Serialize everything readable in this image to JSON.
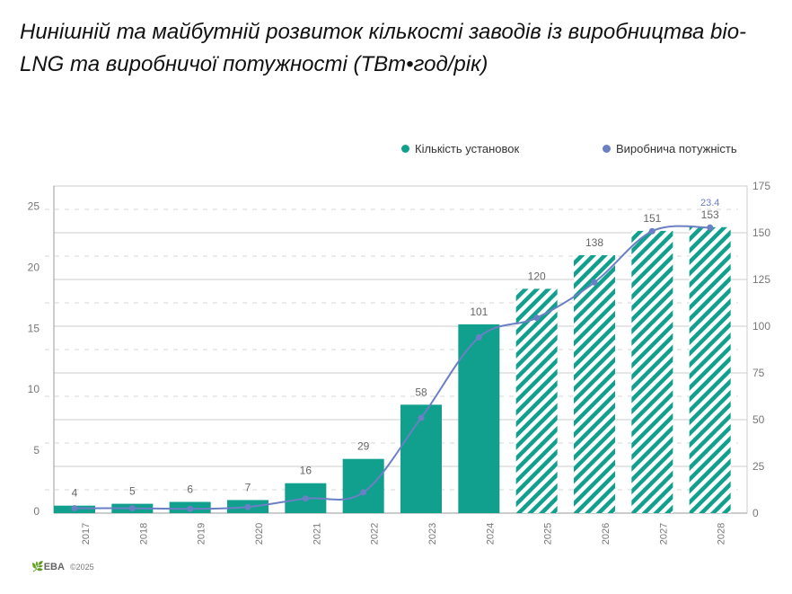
{
  "chart_data": {
    "type": "bar",
    "title": "Нинішній та майбутній розвиток кількості заводів із виробництва bio-LNG та виробничої потужності (ТВт•год/рік)",
    "categories": [
      "2017",
      "2018",
      "2019",
      "2020",
      "2021",
      "2022",
      "2023",
      "2024",
      "2025",
      "2026",
      "2027",
      "2028"
    ],
    "series": [
      {
        "name": "Кількість установок",
        "type": "bar",
        "axis": "right",
        "color": "#11a08e",
        "values": [
          4,
          5,
          6,
          7,
          16,
          29,
          58,
          101,
          120,
          138,
          151,
          153
        ],
        "projected_from": "2025",
        "labels": [
          "4",
          "5",
          "6",
          "7",
          "16",
          "29",
          "58",
          "101",
          "120",
          "138",
          "151",
          "153"
        ]
      },
      {
        "name": "Виробнича потужність",
        "type": "line",
        "axis": "left",
        "color": "#6b7fc4",
        "values": [
          0.4,
          0.4,
          0.35,
          0.5,
          1.2,
          1.7,
          7.8,
          14.4,
          16.0,
          18.9,
          23.1,
          23.4
        ],
        "data_label": "23.4"
      }
    ],
    "left_axis": {
      "ylim": [
        0,
        26.8
      ],
      "ticks": [
        "0",
        "5",
        "10",
        "15",
        "20",
        "25"
      ]
    },
    "right_axis": {
      "ylim": [
        0,
        175
      ],
      "ticks": [
        "0",
        "25",
        "50",
        "75",
        "100",
        "125",
        "150",
        "175"
      ]
    },
    "grid": true,
    "legend": "top-right"
  },
  "footer": {
    "logo": "EBA",
    "copyright": "©2025"
  }
}
